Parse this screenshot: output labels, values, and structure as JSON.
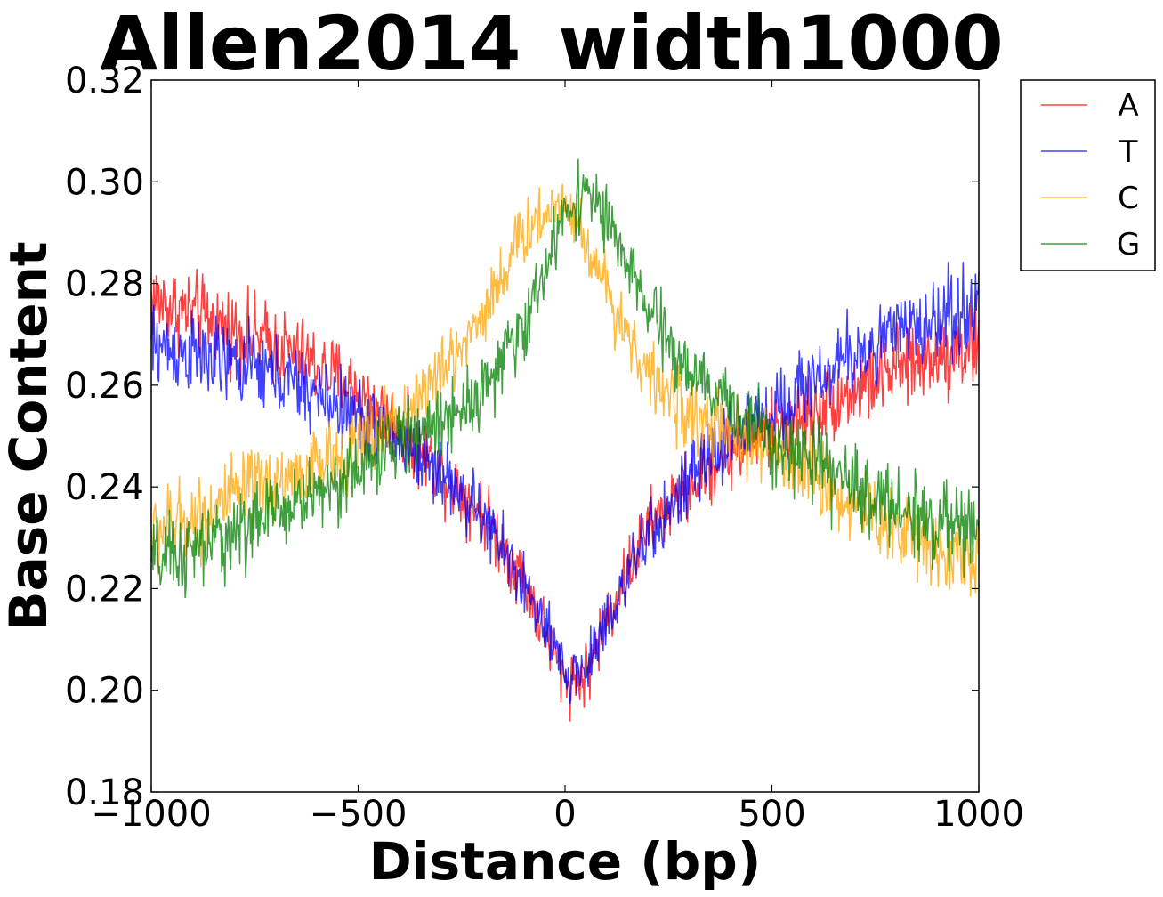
{
  "chart_data": {
    "type": "line",
    "title": "Allen2014_width1000",
    "xlabel": "Distance (bp)",
    "ylabel": "Base Content",
    "xlim": [
      -1000,
      1000
    ],
    "ylim": [
      0.18,
      0.32
    ],
    "xticks": [
      -1000,
      -500,
      0,
      500,
      1000
    ],
    "xtick_labels": [
      "−1000",
      "−500",
      "0",
      "500",
      "1000"
    ],
    "yticks": [
      0.18,
      0.2,
      0.22,
      0.24,
      0.26,
      0.28,
      0.3,
      0.32
    ],
    "ytick_labels": [
      "0.18",
      "0.20",
      "0.22",
      "0.24",
      "0.26",
      "0.28",
      "0.30",
      "0.32"
    ],
    "grid": false,
    "legend_position": "outside-top-right",
    "x": [
      -1000,
      -900,
      -800,
      -700,
      -600,
      -500,
      -400,
      -300,
      -200,
      -100,
      0,
      50,
      100,
      200,
      300,
      400,
      500,
      600,
      700,
      800,
      900,
      1000
    ],
    "series": [
      {
        "name": "A",
        "color": "#ff0000",
        "values": [
          0.277,
          0.274,
          0.271,
          0.268,
          0.264,
          0.259,
          0.251,
          0.243,
          0.235,
          0.222,
          0.202,
          0.203,
          0.214,
          0.232,
          0.24,
          0.247,
          0.251,
          0.255,
          0.259,
          0.263,
          0.266,
          0.268
        ]
      },
      {
        "name": "T",
        "color": "#0000ff",
        "values": [
          0.268,
          0.266,
          0.264,
          0.262,
          0.258,
          0.254,
          0.249,
          0.243,
          0.234,
          0.221,
          0.203,
          0.204,
          0.214,
          0.23,
          0.241,
          0.25,
          0.255,
          0.261,
          0.266,
          0.27,
          0.273,
          0.276
        ]
      },
      {
        "name": "C",
        "color": "#ffa500",
        "values": [
          0.231,
          0.234,
          0.238,
          0.241,
          0.244,
          0.248,
          0.254,
          0.262,
          0.274,
          0.29,
          0.297,
          0.288,
          0.279,
          0.262,
          0.254,
          0.25,
          0.247,
          0.243,
          0.236,
          0.232,
          0.228,
          0.225
        ]
      },
      {
        "name": "G",
        "color": "#008000",
        "values": [
          0.225,
          0.227,
          0.231,
          0.235,
          0.239,
          0.243,
          0.249,
          0.253,
          0.259,
          0.271,
          0.294,
          0.299,
          0.292,
          0.275,
          0.262,
          0.256,
          0.25,
          0.244,
          0.24,
          0.236,
          0.233,
          0.231
        ]
      }
    ]
  }
}
